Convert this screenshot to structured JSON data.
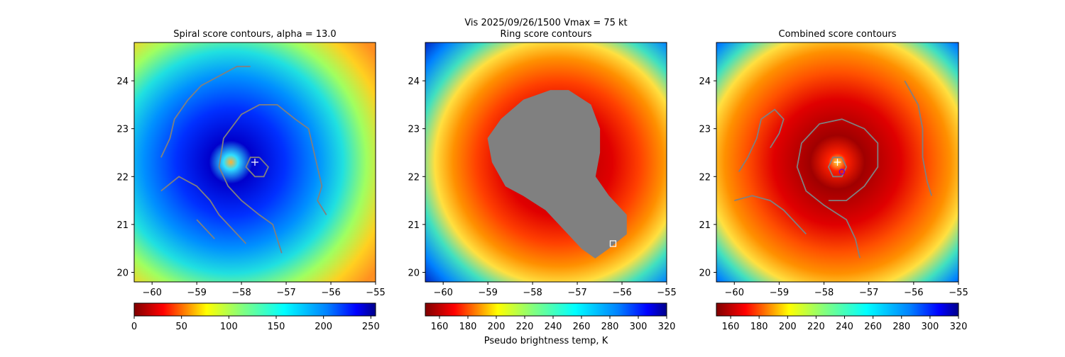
{
  "figure": {
    "suptitle_line1": "Vis  2025/09/26/1500    Vmax = 75 kt",
    "colorbar_label": "Pseudo brightness temp, K"
  },
  "chart_data": [
    {
      "type": "heatmap",
      "title": "Spiral score contours, alpha = 13.0",
      "xlim": [
        -60.4,
        -55.0
      ],
      "ylim": [
        19.8,
        24.8
      ],
      "xticks": [
        -60,
        -59,
        -58,
        -57,
        -56,
        -55
      ],
      "yticks": [
        20,
        21,
        22,
        23,
        24
      ],
      "center_marker": {
        "x": -57.7,
        "y": 22.3,
        "symbol": "+"
      },
      "colorbar": {
        "range": [
          0,
          255
        ],
        "ticks": [
          0,
          50,
          100,
          150,
          200,
          250
        ],
        "palette": "jet_r"
      },
      "contours": [
        [
          [
            -59.8,
            22.4
          ],
          [
            -59.6,
            22.8
          ],
          [
            -59.5,
            23.2
          ],
          [
            -59.2,
            23.6
          ],
          [
            -58.9,
            23.9
          ],
          [
            -58.5,
            24.1
          ],
          [
            -58.1,
            24.3
          ],
          [
            -57.8,
            24.3
          ]
        ],
        [
          [
            -59.8,
            21.7
          ],
          [
            -59.4,
            22.0
          ],
          [
            -59.0,
            21.8
          ],
          [
            -58.7,
            21.5
          ],
          [
            -58.5,
            21.2
          ],
          [
            -58.2,
            20.9
          ],
          [
            -57.9,
            20.6
          ]
        ],
        [
          [
            -59.0,
            21.1
          ],
          [
            -58.8,
            20.9
          ],
          [
            -58.6,
            20.7
          ]
        ],
        [
          [
            -57.1,
            20.4
          ],
          [
            -57.2,
            20.7
          ],
          [
            -57.3,
            21.0
          ],
          [
            -57.6,
            21.2
          ],
          [
            -58.0,
            21.5
          ],
          [
            -58.3,
            21.8
          ],
          [
            -58.5,
            22.2
          ],
          [
            -58.4,
            22.8
          ],
          [
            -58.0,
            23.3
          ],
          [
            -57.6,
            23.5
          ],
          [
            -57.2,
            23.5
          ],
          [
            -56.8,
            23.2
          ],
          [
            -56.5,
            23.0
          ],
          [
            -56.4,
            22.6
          ],
          [
            -56.3,
            22.2
          ],
          [
            -56.2,
            21.8
          ],
          [
            -56.3,
            21.5
          ],
          [
            -56.1,
            21.2
          ]
        ],
        [
          [
            -57.6,
            22.4
          ],
          [
            -57.4,
            22.2
          ],
          [
            -57.5,
            22.0
          ],
          [
            -57.7,
            22.0
          ],
          [
            -57.9,
            22.2
          ],
          [
            -57.8,
            22.4
          ],
          [
            -57.6,
            22.4
          ]
        ]
      ]
    },
    {
      "type": "heatmap",
      "title": "Ring score contours",
      "xlim": [
        -60.4,
        -55.0
      ],
      "ylim": [
        19.8,
        24.8
      ],
      "xticks": [
        -60,
        -59,
        -58,
        -57,
        -56,
        -55
      ],
      "yticks": [
        20,
        21,
        22,
        23,
        24
      ],
      "square_marker": {
        "x": -56.2,
        "y": 20.6
      },
      "colorbar": {
        "range": [
          150,
          320
        ],
        "ticks": [
          160,
          180,
          200,
          220,
          240,
          260,
          280,
          300,
          320
        ],
        "palette": "jet_r"
      },
      "filled_region": [
        [
          -57.2,
          23.8
        ],
        [
          -56.7,
          23.5
        ],
        [
          -56.5,
          23.0
        ],
        [
          -56.5,
          22.5
        ],
        [
          -56.6,
          22.0
        ],
        [
          -56.3,
          21.6
        ],
        [
          -55.9,
          21.2
        ],
        [
          -55.9,
          20.8
        ],
        [
          -56.3,
          20.5
        ],
        [
          -56.6,
          20.3
        ],
        [
          -56.9,
          20.5
        ],
        [
          -57.3,
          20.9
        ],
        [
          -57.7,
          21.3
        ],
        [
          -58.2,
          21.6
        ],
        [
          -58.6,
          21.8
        ],
        [
          -58.9,
          22.3
        ],
        [
          -59.0,
          22.8
        ],
        [
          -58.7,
          23.2
        ],
        [
          -58.2,
          23.6
        ],
        [
          -57.6,
          23.8
        ]
      ]
    },
    {
      "type": "heatmap",
      "title": "Combined score contours",
      "xlim": [
        -60.4,
        -55.0
      ],
      "ylim": [
        19.8,
        24.8
      ],
      "xticks": [
        -60,
        -59,
        -58,
        -57,
        -56,
        -55
      ],
      "yticks": [
        20,
        21,
        22,
        23,
        24
      ],
      "center_marker": {
        "x": -57.7,
        "y": 22.3,
        "symbol": "+"
      },
      "circle_marker": {
        "x": -57.6,
        "y": 22.1
      },
      "colorbar": {
        "range": [
          150,
          320
        ],
        "ticks": [
          160,
          180,
          200,
          220,
          240,
          260,
          280,
          300,
          320
        ],
        "palette": "jet_r"
      },
      "contours": [
        [
          [
            -59.2,
            22.6
          ],
          [
            -59.0,
            22.9
          ],
          [
            -58.9,
            23.2
          ],
          [
            -59.1,
            23.4
          ],
          [
            -59.4,
            23.2
          ],
          [
            -59.5,
            22.8
          ],
          [
            -59.7,
            22.4
          ],
          [
            -59.9,
            22.1
          ]
        ],
        [
          [
            -60.0,
            21.5
          ],
          [
            -59.6,
            21.6
          ],
          [
            -59.2,
            21.5
          ],
          [
            -58.9,
            21.3
          ],
          [
            -58.7,
            21.1
          ],
          [
            -58.4,
            20.8
          ]
        ],
        [
          [
            -57.2,
            20.3
          ],
          [
            -57.3,
            20.7
          ],
          [
            -57.5,
            21.1
          ],
          [
            -58.0,
            21.4
          ],
          [
            -58.4,
            21.7
          ],
          [
            -58.6,
            22.2
          ],
          [
            -58.5,
            22.7
          ],
          [
            -58.1,
            23.1
          ],
          [
            -57.6,
            23.2
          ],
          [
            -57.1,
            23.0
          ],
          [
            -56.8,
            22.7
          ],
          [
            -56.8,
            22.2
          ],
          [
            -57.1,
            21.8
          ],
          [
            -57.5,
            21.5
          ],
          [
            -57.9,
            21.5
          ]
        ],
        [
          [
            -56.2,
            24.0
          ],
          [
            -55.9,
            23.5
          ],
          [
            -55.8,
            23.0
          ],
          [
            -55.8,
            22.4
          ],
          [
            -55.7,
            21.9
          ],
          [
            -55.6,
            21.6
          ]
        ],
        [
          [
            -57.6,
            22.4
          ],
          [
            -57.5,
            22.2
          ],
          [
            -57.6,
            22.0
          ],
          [
            -57.8,
            22.0
          ],
          [
            -57.9,
            22.2
          ],
          [
            -57.8,
            22.4
          ],
          [
            -57.6,
            22.4
          ]
        ]
      ]
    }
  ]
}
